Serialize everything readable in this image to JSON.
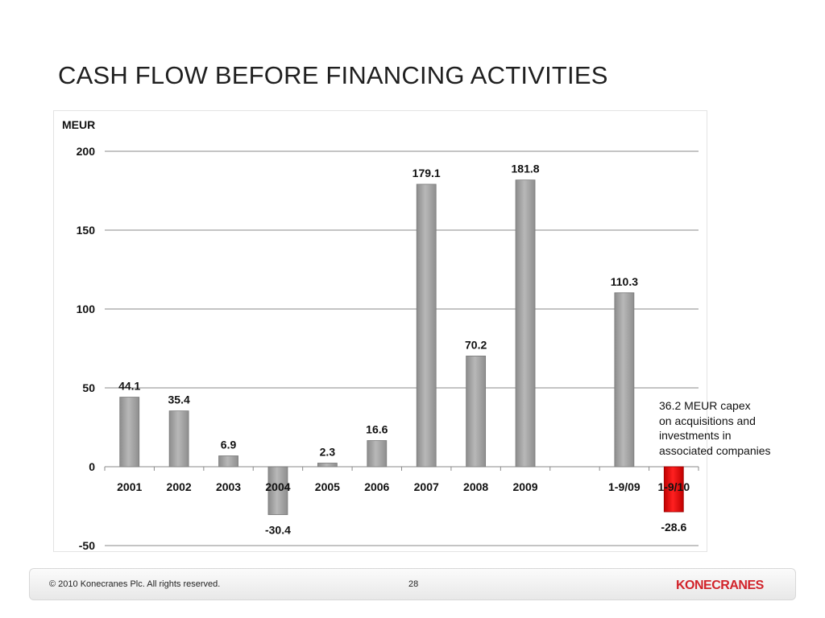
{
  "title": "CASH FLOW BEFORE FINANCING ACTIVITIES",
  "annotation": {
    "lines": [
      "36.2 MEUR capex",
      "on acquisitions and",
      "investments in",
      "associated companies"
    ]
  },
  "footer": {
    "copyright": "© 2010 Konecranes Plc. All rights reserved.",
    "page_number": "28",
    "logo_text": "KONECRANES"
  },
  "colors": {
    "bar": "#a6a6a6",
    "highlight_bar": "#e00000",
    "brand": "#d2232a"
  },
  "chart_data": {
    "type": "bar",
    "unit_label": "MEUR",
    "categories": [
      "2001",
      "2002",
      "2003",
      "2004",
      "2005",
      "2006",
      "2007",
      "2008",
      "2009",
      "",
      "1-9/09",
      "1-9/10"
    ],
    "values": [
      44.1,
      35.4,
      6.9,
      -30.4,
      2.3,
      16.6,
      179.1,
      70.2,
      181.8,
      null,
      110.3,
      -28.6
    ],
    "value_labels": [
      "44.1",
      "35.4",
      "6.9",
      "-30.4",
      "2.3",
      "16.6",
      "179.1",
      "70.2",
      "181.8",
      "",
      "110.3",
      "-28.6"
    ],
    "highlight_index": 11,
    "ylim": [
      -50,
      200
    ],
    "yticks": [
      -50,
      0,
      50,
      100,
      150,
      200
    ],
    "grid": true,
    "legend": "none"
  }
}
